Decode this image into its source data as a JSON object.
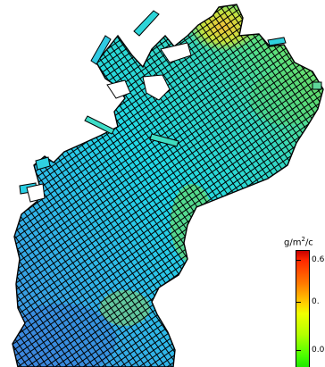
{
  "legend": {
    "unit_text": "g/m",
    "unit_sup": "2",
    "unit_rest": "/c",
    "ticks": [
      "0.6",
      "0.",
      "0.0"
    ]
  },
  "colors": {
    "deep": "#3f7fe0",
    "mid": "#22d8e6",
    "green": "#6fe34a",
    "yellow": "#f1c83c",
    "outline": "#000000"
  }
}
